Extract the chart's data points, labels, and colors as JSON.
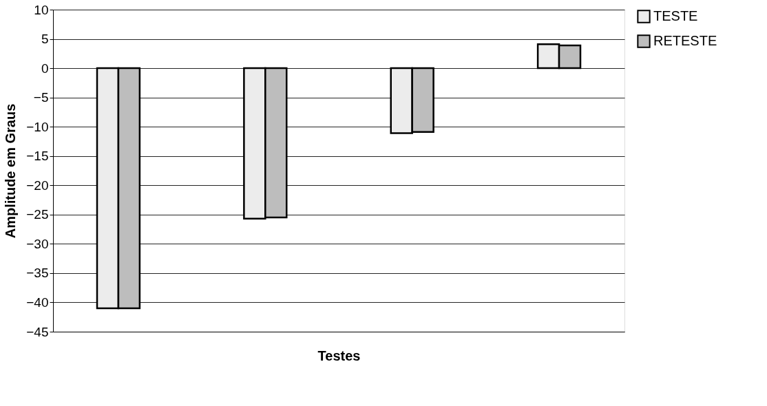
{
  "chart_data": {
    "type": "bar",
    "xlabel": "Testes",
    "ylabel": "Amplitude em Graus",
    "categories": [
      null,
      null,
      null,
      null
    ],
    "series": [
      {
        "name": "TESTE",
        "color": "#ececec",
        "values": [
          -41,
          -25.7,
          -11.1,
          4.1
        ]
      },
      {
        "name": "RETESTE",
        "color": "#bdbdbd",
        "values": [
          -41,
          -25.5,
          -10.9,
          3.9
        ]
      }
    ],
    "ylim": [
      -45,
      10
    ],
    "yticks": [
      -45,
      -40,
      -35,
      -30,
      -25,
      -20,
      -15,
      -10,
      -5,
      0,
      5,
      10
    ],
    "grid": "y",
    "legend": "right",
    "tick_labels": "y"
  }
}
